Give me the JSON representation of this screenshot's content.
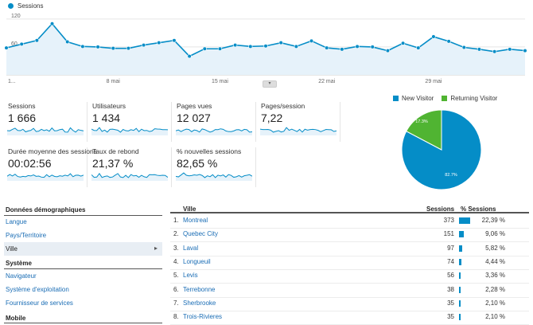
{
  "main_chart": {
    "legend_label": "Sessions",
    "y_ticks": [
      "120",
      "60"
    ],
    "x_ticks": [
      "1...",
      "8 mai",
      "15 mai",
      "22 mai",
      "29 mai"
    ],
    "values": [
      58,
      66,
      74,
      110,
      71,
      61,
      60,
      57,
      57,
      64,
      69,
      74,
      40,
      56,
      56,
      64,
      61,
      62,
      69,
      61,
      73,
      58,
      55,
      61,
      60,
      52,
      68,
      58,
      82,
      72,
      59,
      55,
      50,
      55,
      52
    ],
    "color": "#058dc7"
  },
  "metrics": [
    {
      "label": "Sessions",
      "value": "1 666"
    },
    {
      "label": "Utilisateurs",
      "value": "1 434"
    },
    {
      "label": "Pages vues",
      "value": "12 027"
    },
    {
      "label": "Pages/session",
      "value": "7,22"
    },
    {
      "label": "Durée moyenne des sessions",
      "value": "00:02:56"
    },
    {
      "label": "Taux de rebond",
      "value": "21,37 %"
    },
    {
      "label": "% nouvelles sessions",
      "value": "82,65 %"
    }
  ],
  "pie": {
    "legend": [
      {
        "label": "New Visitor",
        "color": "#058dc7"
      },
      {
        "label": "Returning Visitor",
        "color": "#50b432"
      }
    ],
    "slices": [
      {
        "label": "82.7%",
        "value": 82.7,
        "color": "#058dc7"
      },
      {
        "label": "17.3%",
        "value": 17.3,
        "color": "#50b432"
      }
    ]
  },
  "nav": {
    "demo_header": "Données démographiques",
    "demo_items": [
      "Langue",
      "Pays/Territoire",
      "Ville"
    ],
    "system_header": "Système",
    "system_items": [
      "Navigateur",
      "Système d'exploitation",
      "Fournisseur de services"
    ],
    "mobile_header": "Mobile",
    "active_arrow": "▸"
  },
  "table": {
    "col_city": "Ville",
    "col_sessions": "Sessions",
    "col_pct": "% Sessions",
    "rows": [
      {
        "idx": "1.",
        "city": "Montreal",
        "sessions": "373",
        "pct": "22,39 %",
        "frac": 0.2239
      },
      {
        "idx": "2.",
        "city": "Quebec City",
        "sessions": "151",
        "pct": "9,06 %",
        "frac": 0.0906
      },
      {
        "idx": "3.",
        "city": "Laval",
        "sessions": "97",
        "pct": "5,82 %",
        "frac": 0.0582
      },
      {
        "idx": "4.",
        "city": "Longueuil",
        "sessions": "74",
        "pct": "4,44 %",
        "frac": 0.0444
      },
      {
        "idx": "5.",
        "city": "Levis",
        "sessions": "56",
        "pct": "3,36 %",
        "frac": 0.0336
      },
      {
        "idx": "6.",
        "city": "Terrebonne",
        "sessions": "38",
        "pct": "2,28 %",
        "frac": 0.0228
      },
      {
        "idx": "7.",
        "city": "Sherbrooke",
        "sessions": "35",
        "pct": "2,10 %",
        "frac": 0.021
      },
      {
        "idx": "8.",
        "city": "Trois-Rivieres",
        "sessions": "35",
        "pct": "2,10 %",
        "frac": 0.021
      }
    ]
  }
}
